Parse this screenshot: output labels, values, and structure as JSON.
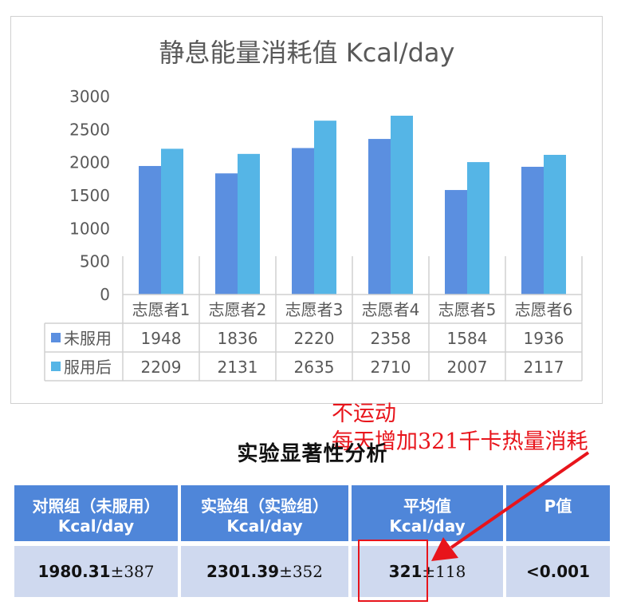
{
  "chart_data": {
    "type": "bar",
    "title": "静息能量消耗值 Kcal/day",
    "categories": [
      "志愿者1",
      "志愿者2",
      "志愿者3",
      "志愿者4",
      "志愿者5",
      "志愿者6"
    ],
    "series": [
      {
        "name": "未服用",
        "values": [
          1948,
          1836,
          2220,
          2358,
          1584,
          1936
        ],
        "color": "#5b8fe0"
      },
      {
        "name": "服用后",
        "values": [
          2209,
          2131,
          2635,
          2710,
          2007,
          2117
        ],
        "color": "#55b5e6"
      }
    ],
    "ylim": [
      0,
      3000
    ],
    "yticks": [
      "0",
      "500",
      "1000",
      "1500",
      "2000",
      "2500",
      "3000"
    ],
    "legend": "data-table",
    "grid": false
  },
  "annotation": {
    "line1": "不运动",
    "line2": "每天增加321千卡热量消耗",
    "color": "#e8141b"
  },
  "analysis": {
    "title": "实验显著性分析",
    "headers": [
      {
        "line1": "对照组（未服用）",
        "line2": "Kcal/day"
      },
      {
        "line1": "实验组（实验组）",
        "line2": "Kcal/day"
      },
      {
        "line1": "平均值",
        "line2": "Kcal/day"
      },
      {
        "line1": "P值",
        "line2": ""
      }
    ],
    "row": [
      {
        "value": "1980.31",
        "pm": "±387"
      },
      {
        "value": "2301.39",
        "pm": "±352"
      },
      {
        "value": "321",
        "pm": "±118"
      },
      {
        "value": "<0.001",
        "pm": ""
      }
    ]
  }
}
